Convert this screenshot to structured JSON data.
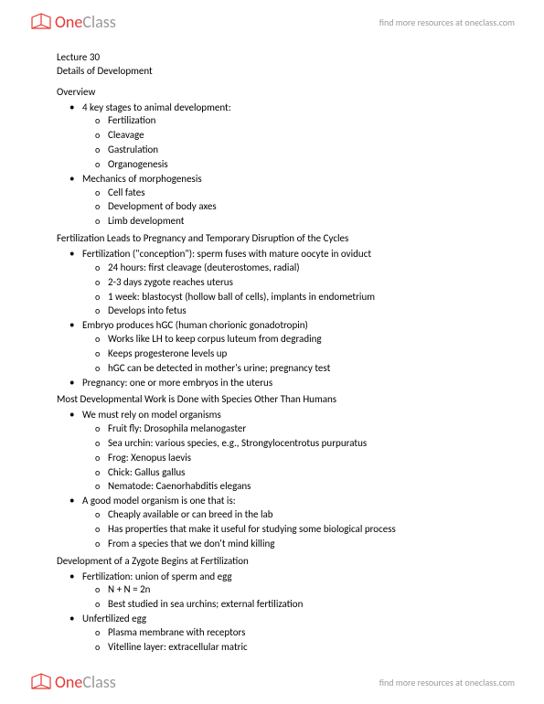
{
  "brand": {
    "one": "One",
    "class": "Class",
    "tagline": "find more resources at oneclass.com"
  },
  "doc": {
    "lecture": "Lecture 30",
    "subtitle": "Details of Development",
    "sections": [
      {
        "heading": "Overview",
        "items": [
          {
            "text": "4 key stages to animal development:",
            "sub": [
              "Fertilization",
              "Cleavage",
              "Gastrulation",
              "Organogenesis"
            ]
          },
          {
            "text": "Mechanics of morphogenesis",
            "sub": [
              "Cell fates",
              "Development of body axes",
              "Limb development"
            ]
          }
        ]
      },
      {
        "heading": "Fertilization Leads to Pregnancy and Temporary Disruption of the Cycles",
        "items": [
          {
            "text": "Fertilization (\"conception\"): sperm fuses with mature oocyte in oviduct",
            "sub": [
              "24 hours: first cleavage (deuterostomes, radial)",
              "2-3 days zygote reaches uterus",
              "1 week: blastocyst (hollow ball of cells), implants in endometrium",
              "Develops into fetus"
            ]
          },
          {
            "text": "Embryo produces hGC (human chorionic gonadotropin)",
            "sub": [
              "Works like LH to keep corpus luteum from degrading",
              "Keeps progesterone levels up",
              "hGC can be detected in mother's urine; pregnancy test"
            ]
          },
          {
            "text": "Pregnancy: one or more embryos in the uterus",
            "sub": []
          }
        ]
      },
      {
        "heading": "Most Developmental Work is Done with Species Other Than Humans",
        "items": [
          {
            "text": "We must rely on model organisms",
            "sub": [
              "Fruit fly: Drosophila melanogaster",
              "Sea urchin: various species, e.g., Strongylocentrotus purpuratus",
              "Frog: Xenopus laevis",
              "Chick: Gallus gallus",
              "Nematode: Caenorhabditis elegans"
            ]
          },
          {
            "text": "A good model organism is one that is:",
            "sub": [
              "Cheaply available or can breed in the lab",
              "Has properties that make it useful for studying some biological process",
              "From a species that we don't mind killing"
            ]
          }
        ]
      },
      {
        "heading": "Development of a Zygote Begins at Fertilization",
        "items": [
          {
            "text": "Fertilization: union of sperm and egg",
            "sub": [
              "N + N = 2n",
              "Best studied in sea urchins; external fertilization"
            ]
          },
          {
            "text": "Unfertilized egg",
            "sub": [
              "Plasma membrane with receptors",
              "Vitelline layer: extracellular matric"
            ]
          }
        ]
      }
    ]
  }
}
